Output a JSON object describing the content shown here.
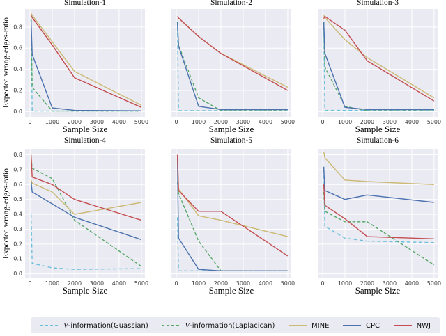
{
  "figure": {
    "ylabel": "Expected wrong-edges-ratio",
    "xlabel": "Sample Size",
    "plot_bg": "#eaeaf2",
    "grid_color": "#ffffff",
    "colors": {
      "guassian": "#6cc0dc",
      "laplacican": "#55a868",
      "mine": "#ccb974",
      "cpc": "#4c72b0",
      "nwj": "#c44e52"
    }
  },
  "legend": {
    "position": "bottom",
    "items": [
      {
        "key": "guassian",
        "cal": "V",
        "label": "-information(Guassian)",
        "dashed": true
      },
      {
        "key": "laplacican",
        "cal": "V",
        "label": "-information(Laplacican)",
        "dashed": true
      },
      {
        "key": "mine",
        "cal": "",
        "label": "MINE",
        "dashed": false
      },
      {
        "key": "cpc",
        "cal": "",
        "label": "CPC",
        "dashed": false
      },
      {
        "key": "nwj",
        "cal": "",
        "label": "NWJ",
        "dashed": false
      }
    ]
  },
  "chart_data": [
    {
      "type": "line",
      "title": "Simulation-1",
      "x": [
        50,
        100,
        1000,
        2000,
        5000
      ],
      "xticks": [
        0,
        1000,
        2000,
        3000,
        4000,
        5000
      ],
      "yticks": [
        0,
        0.2,
        0.4,
        0.6,
        0.8
      ],
      "show_ytick_labels": true,
      "xlim": [
        -220,
        5160
      ],
      "ylim": [
        -0.05,
        0.97
      ],
      "series": [
        {
          "key": "guassian",
          "y": [
            0.88,
            0.005,
            0.005,
            0.005,
            0.005
          ]
        },
        {
          "key": "laplacican",
          "y": [
            0.88,
            0.23,
            0.005,
            0.005,
            0.005
          ]
        },
        {
          "key": "mine",
          "y": [
            0.93,
            0.91,
            0.66,
            0.38,
            0.06
          ]
        },
        {
          "key": "cpc",
          "y": [
            0.86,
            0.54,
            0.035,
            0.012,
            0.008
          ]
        },
        {
          "key": "nwj",
          "y": [
            0.91,
            0.89,
            0.63,
            0.32,
            0.04
          ]
        }
      ]
    },
    {
      "type": "line",
      "title": "Simulation-2",
      "x": [
        50,
        100,
        1000,
        2000,
        5000
      ],
      "xticks": [
        0,
        1000,
        2000,
        3000,
        4000,
        5000
      ],
      "yticks": [
        0,
        0.2,
        0.4,
        0.6,
        0.8
      ],
      "show_ytick_labels": false,
      "xlim": [
        -220,
        5160
      ],
      "ylim": [
        -0.05,
        0.97
      ],
      "series": [
        {
          "key": "guassian",
          "y": [
            0.85,
            0.01,
            0.01,
            0.01,
            0.01
          ]
        },
        {
          "key": "laplacican",
          "y": [
            0.85,
            0.63,
            0.13,
            0.01,
            0.01
          ]
        },
        {
          "key": "mine",
          "y": [
            0.9,
            0.885,
            0.71,
            0.55,
            0.23
          ]
        },
        {
          "key": "cpc",
          "y": [
            0.85,
            0.62,
            0.05,
            0.02,
            0.02
          ]
        },
        {
          "key": "nwj",
          "y": [
            0.9,
            0.885,
            0.71,
            0.55,
            0.2
          ]
        }
      ]
    },
    {
      "type": "line",
      "title": "Simulation-3",
      "x": [
        50,
        100,
        1000,
        2000,
        5000
      ],
      "xticks": [
        0,
        1000,
        2000,
        3000,
        4000,
        5000
      ],
      "yticks": [
        0,
        0.2,
        0.4,
        0.6,
        0.8
      ],
      "show_ytick_labels": false,
      "xlim": [
        -220,
        5160
      ],
      "ylim": [
        -0.05,
        0.97
      ],
      "series": [
        {
          "key": "guassian",
          "y": [
            0.85,
            0.012,
            0.012,
            0.012,
            0.012
          ]
        },
        {
          "key": "laplacican",
          "y": [
            0.85,
            0.42,
            0.05,
            0.008,
            0.008
          ]
        },
        {
          "key": "mine",
          "y": [
            0.91,
            0.89,
            0.68,
            0.51,
            0.13
          ]
        },
        {
          "key": "cpc",
          "y": [
            0.85,
            0.55,
            0.04,
            0.02,
            0.02
          ]
        },
        {
          "key": "nwj",
          "y": [
            0.88,
            0.9,
            0.77,
            0.48,
            0.1
          ]
        }
      ]
    },
    {
      "type": "line",
      "title": "Simulation-4",
      "x": [
        50,
        100,
        1000,
        2000,
        5000
      ],
      "xticks": [
        0,
        1000,
        2000,
        3000,
        4000,
        5000
      ],
      "yticks": [
        0,
        0.1,
        0.2,
        0.3,
        0.4,
        0.5,
        0.6,
        0.7,
        0.8
      ],
      "show_ytick_labels": true,
      "xlim": [
        -220,
        5160
      ],
      "ylim": [
        -0.03,
        0.84
      ],
      "series": [
        {
          "key": "guassian",
          "y": [
            0.4,
            0.07,
            0.04,
            0.03,
            0.035
          ]
        },
        {
          "key": "laplacican",
          "y": [
            0.78,
            0.71,
            0.64,
            0.36,
            0.05
          ]
        },
        {
          "key": "mine",
          "y": [
            0.63,
            0.61,
            0.55,
            0.4,
            0.48
          ]
        },
        {
          "key": "cpc",
          "y": [
            0.62,
            0.55,
            0.47,
            0.38,
            0.23
          ]
        },
        {
          "key": "nwj",
          "y": [
            0.8,
            0.65,
            0.6,
            0.5,
            0.36
          ]
        }
      ]
    },
    {
      "type": "line",
      "title": "Simulation-5",
      "x": [
        50,
        100,
        1000,
        2000,
        5000
      ],
      "xticks": [
        0,
        1000,
        2000,
        3000,
        4000,
        5000
      ],
      "yticks": [
        0,
        0.1,
        0.2,
        0.3,
        0.4,
        0.5,
        0.6,
        0.7,
        0.8
      ],
      "show_ytick_labels": false,
      "xlim": [
        -220,
        5160
      ],
      "ylim": [
        -0.03,
        0.84
      ],
      "series": [
        {
          "key": "guassian",
          "y": [
            0.38,
            0.02,
            0.02,
            0.02,
            0.02
          ]
        },
        {
          "key": "laplacican",
          "y": [
            0.62,
            0.54,
            0.22,
            0.02,
            0.02
          ]
        },
        {
          "key": "mine",
          "y": [
            0.8,
            0.57,
            0.39,
            0.36,
            0.25
          ]
        },
        {
          "key": "cpc",
          "y": [
            0.78,
            0.24,
            0.03,
            0.02,
            0.02
          ]
        },
        {
          "key": "nwj",
          "y": [
            0.8,
            0.56,
            0.42,
            0.42,
            0.12
          ]
        }
      ]
    },
    {
      "type": "line",
      "title": "Simulation-6",
      "x": [
        50,
        100,
        1000,
        2000,
        5000
      ],
      "xticks": [
        0,
        1000,
        2000,
        3000,
        4000,
        5000
      ],
      "yticks": [
        0,
        0.1,
        0.2,
        0.3,
        0.4,
        0.5,
        0.6,
        0.7,
        0.8
      ],
      "show_ytick_labels": false,
      "xlim": [
        -220,
        5160
      ],
      "ylim": [
        -0.03,
        0.84
      ],
      "series": [
        {
          "key": "guassian",
          "y": [
            0.7,
            0.32,
            0.24,
            0.22,
            0.21
          ]
        },
        {
          "key": "laplacican",
          "y": [
            0.55,
            0.42,
            0.35,
            0.35,
            0.06
          ]
        },
        {
          "key": "mine",
          "y": [
            0.82,
            0.78,
            0.63,
            0.62,
            0.6
          ]
        },
        {
          "key": "cpc",
          "y": [
            0.72,
            0.56,
            0.5,
            0.53,
            0.48
          ]
        },
        {
          "key": "nwj",
          "y": [
            0.6,
            0.46,
            0.37,
            0.25,
            0.235
          ]
        }
      ]
    }
  ]
}
